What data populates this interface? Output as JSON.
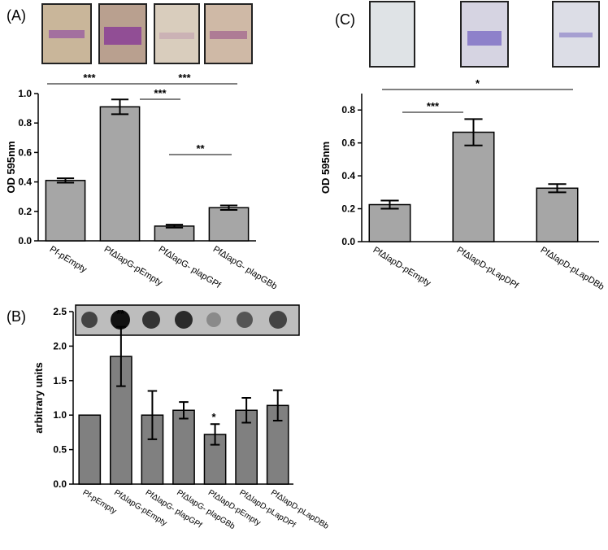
{
  "chart_data": [
    {
      "type": "bar",
      "label": "(A)",
      "ylabel": "OD 595nm",
      "color": "#a6a6a6",
      "categories": [
        "Pf-pEmpty",
        "PfΔlapG-pEmpty",
        "PfΔlapG- plapGPf",
        "PfΔlapG- plapGBb"
      ],
      "values": [
        0.41,
        0.91,
        0.1,
        0.225
      ],
      "errors": [
        0.015,
        0.05,
        0.01,
        0.015
      ],
      "ylim": [
        0,
        1.0
      ],
      "yticks": [
        {
          "value": 0,
          "label": "0.0"
        },
        0.2,
        0.4,
        0.6,
        0.8,
        {
          "value": 1.0,
          "label": "1.0"
        }
      ],
      "annotations": [
        "***",
        "***",
        "***",
        "**"
      ]
    },
    {
      "type": "bar",
      "label": "(B)",
      "ylabel": "arbitrary units",
      "color": "#808080",
      "categories": [
        "Pf-pEmpty",
        "PfΔlapG-pEmpty",
        "PfΔlapG- plapGPf",
        "PfΔlapG- plapGBb",
        "PfΔlapD-pEmpty",
        "PfΔlapD-pLapDPf",
        "PfΔlapD-pLapDBb"
      ],
      "values": [
        1.0,
        1.85,
        1.0,
        1.07,
        0.72,
        1.07,
        1.14
      ],
      "errors": [
        null,
        0.43,
        0.35,
        0.12,
        0.15,
        0.18,
        0.22
      ],
      "ylim": [
        0,
        2.5
      ],
      "yticks": [
        {
          "value": 0,
          "label": "0.0"
        },
        0.5,
        {
          "value": 1.0,
          "label": "1.0"
        },
        1.5,
        {
          "value": 2.0,
          "label": "2.0"
        },
        2.5
      ],
      "annotations": [
        "**",
        "*"
      ]
    },
    {
      "type": "bar",
      "label": "(C)",
      "ylabel": "OD 595nm",
      "color": "#a6a6a6",
      "categories": [
        "PfΔlapD-pEmpty",
        "PfΔlapD-pLapDPf",
        "PfΔlapD-pLapDBb"
      ],
      "values": [
        0.225,
        0.665,
        0.325
      ],
      "errors": [
        0.025,
        0.08,
        0.025
      ],
      "ylim": [
        0,
        0.9
      ],
      "yticks": [
        {
          "value": 0,
          "label": "0.0"
        },
        0.2,
        0.4,
        0.6,
        0.8
      ],
      "annotations": [
        "***",
        "*"
      ]
    }
  ]
}
